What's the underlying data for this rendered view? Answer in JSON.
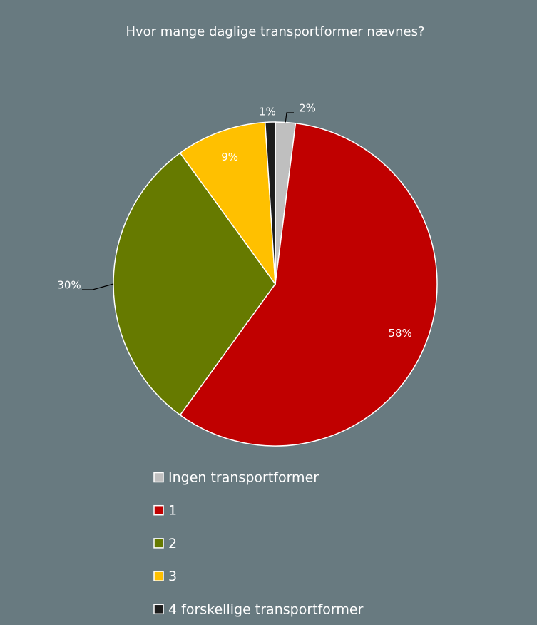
{
  "chart_data": {
    "type": "pie",
    "title": "Hvor mange daglige transportformer nævnes?",
    "categories": [
      "Ingen transportformer",
      "1",
      "2",
      "3",
      "4 forskellige transportformer"
    ],
    "values": [
      2,
      58,
      30,
      9,
      1
    ],
    "value_labels": [
      "2%",
      "58%",
      "30%",
      "9%",
      "1%"
    ],
    "colors": [
      "#bfbfbf",
      "#c00000",
      "#667a00",
      "#ffc000",
      "#1c1c1c"
    ]
  }
}
